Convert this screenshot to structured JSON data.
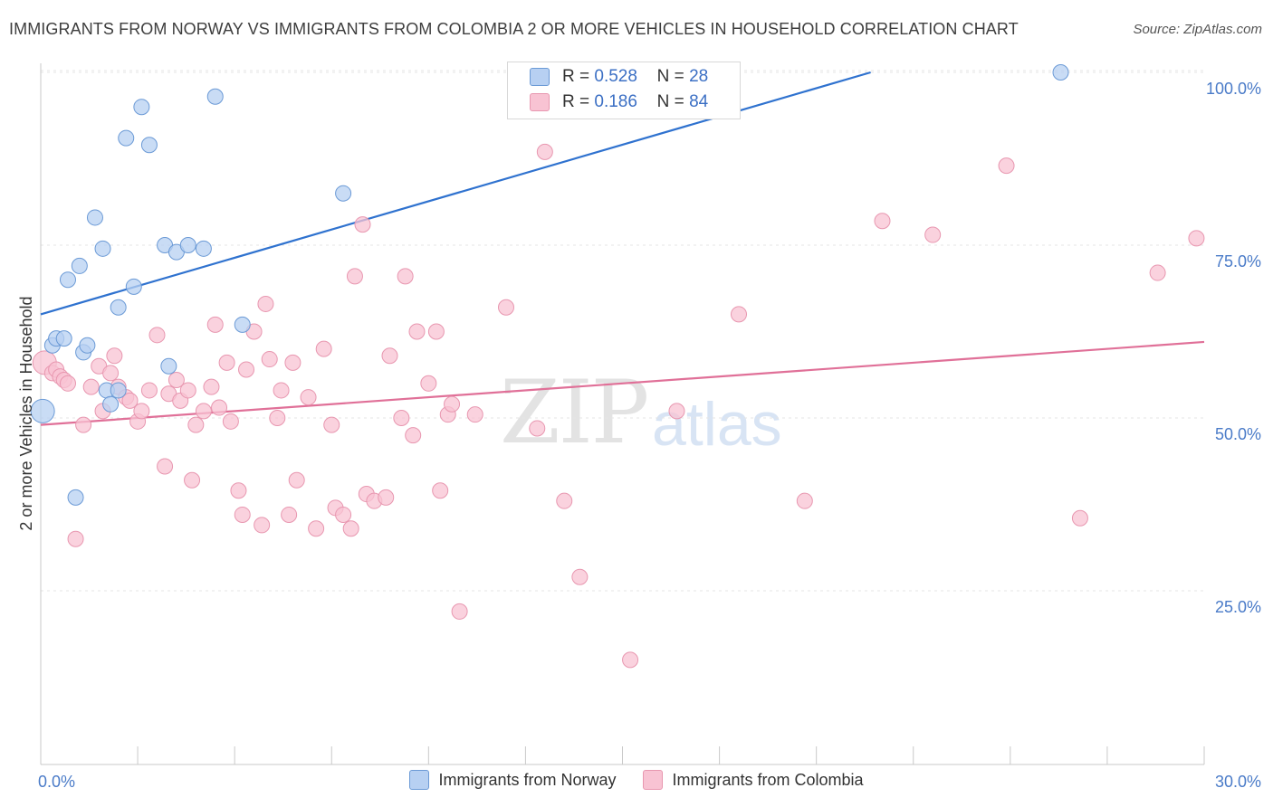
{
  "header": {
    "title": "IMMIGRANTS FROM NORWAY VS IMMIGRANTS FROM COLOMBIA 2 OR MORE VEHICLES IN HOUSEHOLD CORRELATION CHART",
    "source": "Source: ZipAtlas.com"
  },
  "watermark": {
    "zip": "ZIP",
    "atlas": "atlas"
  },
  "legend_top": {
    "rows": [
      {
        "r_label": "R =",
        "r_value": "0.528",
        "n_label": "N =",
        "n_value": "28"
      },
      {
        "r_label": "R =",
        "r_value": "0.186",
        "n_label": "N =",
        "n_value": "84"
      }
    ]
  },
  "colors": {
    "norway_fill": "#b7d0f2",
    "norway_stroke": "#6b9ad6",
    "norway_line": "#2f72cf",
    "colombia_fill": "#f8c3d3",
    "colombia_stroke": "#e897b0",
    "colombia_line": "#e07098",
    "grid": "#e4e4e4"
  },
  "chart_data": {
    "type": "scatter",
    "title": "IMMIGRANTS FROM NORWAY VS IMMIGRANTS FROM COLOMBIA 2 OR MORE VEHICLES IN HOUSEHOLD CORRELATION CHART",
    "xlabel": "",
    "ylabel": "2 or more Vehicles in Household",
    "xlim": [
      0,
      30
    ],
    "ylim": [
      0,
      102
    ],
    "x_tick_labels": [
      {
        "value": 0,
        "label": "0.0%"
      },
      {
        "value": 30,
        "label": "30.0%"
      }
    ],
    "y_tick_labels": [
      {
        "value": 25,
        "label": "25.0%"
      },
      {
        "value": 50,
        "label": "50.0%"
      },
      {
        "value": 75,
        "label": "75.0%"
      },
      {
        "value": 100,
        "label": "100.0%"
      }
    ],
    "y_gridlines": [
      25,
      50,
      75,
      100
    ],
    "series": [
      {
        "name": "Immigrants from Norway",
        "r": 0.528,
        "n": 28,
        "trend": {
          "x": [
            0,
            21.4
          ],
          "y": [
            65.0,
            100.0
          ]
        },
        "points": [
          {
            "x": 0.05,
            "y": 51.0,
            "big": true
          },
          {
            "x": 0.3,
            "y": 60.5
          },
          {
            "x": 0.4,
            "y": 61.5
          },
          {
            "x": 0.6,
            "y": 61.5
          },
          {
            "x": 0.7,
            "y": 70.0
          },
          {
            "x": 1.0,
            "y": 72.0
          },
          {
            "x": 0.9,
            "y": 38.5
          },
          {
            "x": 1.1,
            "y": 59.5
          },
          {
            "x": 1.2,
            "y": 60.5
          },
          {
            "x": 1.4,
            "y": 79.0
          },
          {
            "x": 1.6,
            "y": 74.5
          },
          {
            "x": 1.7,
            "y": 54.0
          },
          {
            "x": 1.8,
            "y": 52.0
          },
          {
            "x": 2.0,
            "y": 66.0
          },
          {
            "x": 2.2,
            "y": 90.5
          },
          {
            "x": 2.4,
            "y": 69.0
          },
          {
            "x": 2.6,
            "y": 95.0
          },
          {
            "x": 2.8,
            "y": 89.5
          },
          {
            "x": 3.2,
            "y": 75.0
          },
          {
            "x": 3.3,
            "y": 57.5
          },
          {
            "x": 3.5,
            "y": 74.0
          },
          {
            "x": 3.8,
            "y": 75.0
          },
          {
            "x": 4.2,
            "y": 74.5
          },
          {
            "x": 4.5,
            "y": 96.5
          },
          {
            "x": 5.2,
            "y": 63.5
          },
          {
            "x": 7.8,
            "y": 82.5
          },
          {
            "x": 26.3,
            "y": 100.0
          },
          {
            "x": 2.0,
            "y": 54.0
          }
        ]
      },
      {
        "name": "Immigrants from Colombia",
        "r": 0.186,
        "n": 84,
        "trend": {
          "x": [
            0,
            30
          ],
          "y": [
            49.0,
            61.0
          ]
        },
        "points": [
          {
            "x": 0.1,
            "y": 58.0,
            "big": true
          },
          {
            "x": 0.3,
            "y": 56.5
          },
          {
            "x": 0.4,
            "y": 57.0
          },
          {
            "x": 0.5,
            "y": 56.0
          },
          {
            "x": 0.6,
            "y": 55.5
          },
          {
            "x": 0.7,
            "y": 55.0
          },
          {
            "x": 0.9,
            "y": 32.5
          },
          {
            "x": 1.1,
            "y": 49.0
          },
          {
            "x": 1.3,
            "y": 54.5
          },
          {
            "x": 1.5,
            "y": 57.5
          },
          {
            "x": 1.6,
            "y": 51.0
          },
          {
            "x": 1.8,
            "y": 56.5
          },
          {
            "x": 1.9,
            "y": 59.0
          },
          {
            "x": 2.0,
            "y": 54.5
          },
          {
            "x": 2.2,
            "y": 53.0
          },
          {
            "x": 2.3,
            "y": 52.5
          },
          {
            "x": 2.5,
            "y": 49.5
          },
          {
            "x": 2.6,
            "y": 51.0
          },
          {
            "x": 2.8,
            "y": 54.0
          },
          {
            "x": 3.0,
            "y": 62.0
          },
          {
            "x": 3.2,
            "y": 43.0
          },
          {
            "x": 3.3,
            "y": 53.5
          },
          {
            "x": 3.5,
            "y": 55.5
          },
          {
            "x": 3.6,
            "y": 52.5
          },
          {
            "x": 3.8,
            "y": 54.0
          },
          {
            "x": 3.9,
            "y": 41.0
          },
          {
            "x": 4.0,
            "y": 49.0
          },
          {
            "x": 4.2,
            "y": 51.0
          },
          {
            "x": 4.4,
            "y": 54.5
          },
          {
            "x": 4.5,
            "y": 63.5
          },
          {
            "x": 4.6,
            "y": 51.5
          },
          {
            "x": 4.8,
            "y": 58.0
          },
          {
            "x": 4.9,
            "y": 49.5
          },
          {
            "x": 5.1,
            "y": 39.5
          },
          {
            "x": 5.2,
            "y": 36.0
          },
          {
            "x": 5.3,
            "y": 57.0
          },
          {
            "x": 5.5,
            "y": 62.5
          },
          {
            "x": 5.7,
            "y": 34.5
          },
          {
            "x": 5.8,
            "y": 66.5
          },
          {
            "x": 5.9,
            "y": 58.5
          },
          {
            "x": 6.1,
            "y": 50.0
          },
          {
            "x": 6.2,
            "y": 54.0
          },
          {
            "x": 6.4,
            "y": 36.0
          },
          {
            "x": 6.5,
            "y": 58.0
          },
          {
            "x": 6.6,
            "y": 41.0
          },
          {
            "x": 6.9,
            "y": 53.0
          },
          {
            "x": 7.1,
            "y": 34.0
          },
          {
            "x": 7.3,
            "y": 60.0
          },
          {
            "x": 7.5,
            "y": 49.0
          },
          {
            "x": 7.6,
            "y": 37.0
          },
          {
            "x": 7.8,
            "y": 36.0
          },
          {
            "x": 8.0,
            "y": 34.0
          },
          {
            "x": 8.1,
            "y": 70.5
          },
          {
            "x": 8.3,
            "y": 78.0
          },
          {
            "x": 8.4,
            "y": 39.0
          },
          {
            "x": 8.6,
            "y": 38.0
          },
          {
            "x": 8.9,
            "y": 38.5
          },
          {
            "x": 9.0,
            "y": 59.0
          },
          {
            "x": 9.3,
            "y": 50.0
          },
          {
            "x": 9.4,
            "y": 70.5
          },
          {
            "x": 9.6,
            "y": 47.5
          },
          {
            "x": 9.7,
            "y": 62.5
          },
          {
            "x": 10.0,
            "y": 55.0
          },
          {
            "x": 10.2,
            "y": 62.5
          },
          {
            "x": 10.3,
            "y": 39.5
          },
          {
            "x": 10.5,
            "y": 50.5
          },
          {
            "x": 10.6,
            "y": 52.0
          },
          {
            "x": 10.8,
            "y": 22.0
          },
          {
            "x": 11.2,
            "y": 50.5
          },
          {
            "x": 12.0,
            "y": 66.0
          },
          {
            "x": 12.8,
            "y": 48.5
          },
          {
            "x": 13.0,
            "y": 88.5
          },
          {
            "x": 13.5,
            "y": 38.0
          },
          {
            "x": 13.9,
            "y": 27.0
          },
          {
            "x": 15.2,
            "y": 15.0
          },
          {
            "x": 16.4,
            "y": 51.0
          },
          {
            "x": 18.0,
            "y": 65.0
          },
          {
            "x": 19.7,
            "y": 38.0
          },
          {
            "x": 21.7,
            "y": 78.5
          },
          {
            "x": 23.0,
            "y": 76.5
          },
          {
            "x": 24.9,
            "y": 86.5
          },
          {
            "x": 26.8,
            "y": 35.5
          },
          {
            "x": 28.8,
            "y": 71.0
          },
          {
            "x": 29.8,
            "y": 76.0
          }
        ]
      }
    ],
    "legend": [
      "Immigrants from Norway",
      "Immigrants from Colombia"
    ]
  }
}
